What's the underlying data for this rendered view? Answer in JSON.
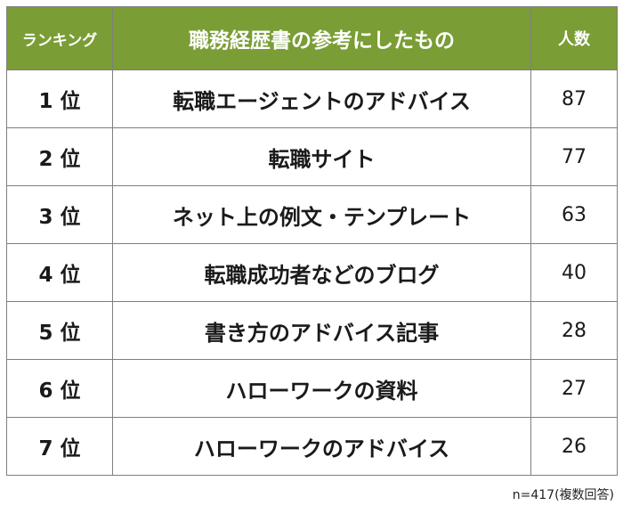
{
  "chart_data": {
    "type": "table",
    "columns": [
      "ランキング",
      "職務経歴書の参考にしたもの",
      "人数"
    ],
    "rows": [
      {
        "rank": "1 位",
        "item": "転職エージェントのアドバイス",
        "count": 87
      },
      {
        "rank": "2 位",
        "item": "転職サイト",
        "count": 77
      },
      {
        "rank": "3 位",
        "item": "ネット上の例文・テンプレート",
        "count": 63
      },
      {
        "rank": "4 位",
        "item": "転職成功者などのブログ",
        "count": 40
      },
      {
        "rank": "5 位",
        "item": "書き方のアドバイス記事",
        "count": 28
      },
      {
        "rank": "6 位",
        "item": "ハローワークの資料",
        "count": 27
      },
      {
        "rank": "7 位",
        "item": "ハローワークのアドバイス",
        "count": 26
      }
    ],
    "note": "n=417(複数回答)"
  },
  "colors": {
    "header_bg": "#7a9d35",
    "header_text": "#ffffff",
    "border": "#7f7f7f"
  }
}
